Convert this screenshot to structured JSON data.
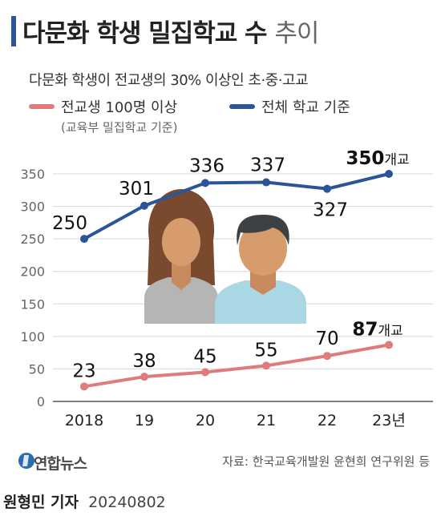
{
  "header": {
    "title_bold": "다문화 학생 밀집학교 수",
    "title_light": "추이",
    "subtitle": "다문화 학생이 전교생의 30% 이상인 초·중·고교"
  },
  "legend": {
    "series1_label": "전교생 100명 이상",
    "series1_note": "(교육부 밀집학교 기준)",
    "series2_label": "전체 학교 기준"
  },
  "colors": {
    "accent": "#2b5597",
    "series_total": "#2b5597",
    "series_100": "#e07b7b",
    "grid": "#d8d8d8"
  },
  "chart_data": {
    "type": "line",
    "categories": [
      "2018",
      "19",
      "20",
      "21",
      "22",
      "23년"
    ],
    "ylim": [
      0,
      350
    ],
    "yticks": [
      0,
      50,
      100,
      150,
      200,
      250,
      300,
      350
    ],
    "unit": "개교",
    "series": [
      {
        "name": "전체 학교 기준",
        "values": [
          250,
          301,
          336,
          337,
          327,
          350
        ],
        "labels": [
          "250",
          "301",
          "336",
          "337",
          "327",
          "350"
        ]
      },
      {
        "name": "전교생 100명 이상",
        "values": [
          23,
          38,
          45,
          55,
          70,
          87
        ],
        "labels": [
          "23",
          "38",
          "45",
          "55",
          "70",
          "87"
        ]
      }
    ]
  },
  "footer": {
    "logo_text": "연합뉴스",
    "source": "자료: 한국교육개발원 윤현희 연구위원 등",
    "author": "원형민 기자",
    "date": "20240802"
  }
}
